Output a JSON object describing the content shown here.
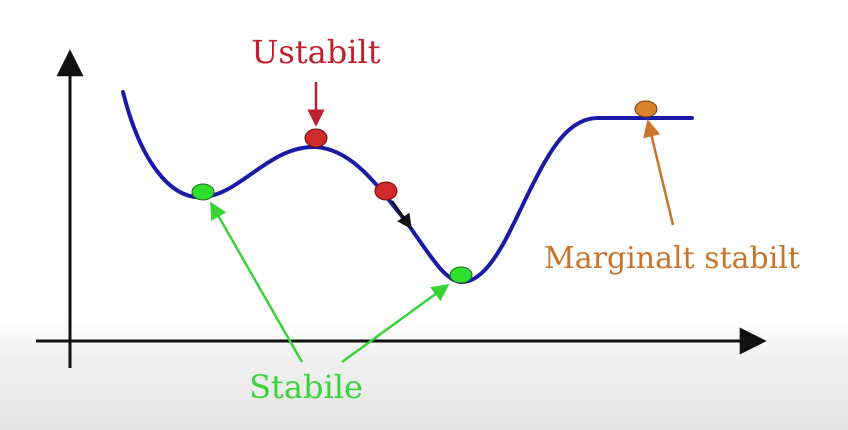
{
  "labels": {
    "unstable": "Ustabilt",
    "stable": "Stabile",
    "marginal": "Marginalt stabilt"
  },
  "colors": {
    "curve": "#1a1aa8",
    "axis": "#111111",
    "unstable": "#c0202e",
    "stable": "#3ad33a",
    "marginal": "#c8742a",
    "stable_ball": "#2ee02e",
    "unstable_ball": "#d12a2a",
    "marginal_ball": "#d9822b"
  }
}
